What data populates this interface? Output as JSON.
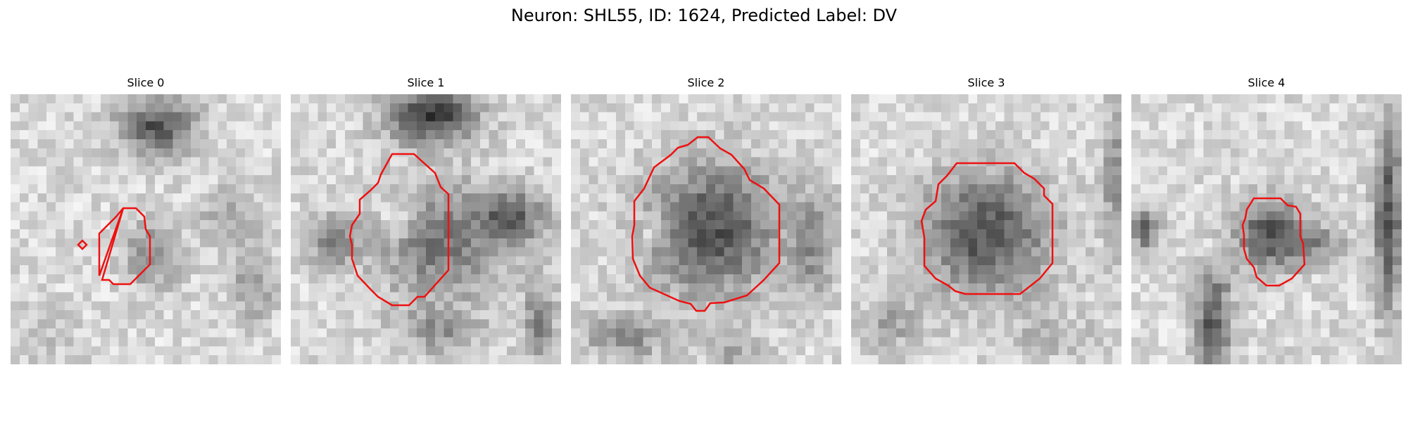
{
  "figure": {
    "title": "Neuron: SHL55, ID: 1624, Predicted Label: DV"
  },
  "colors": {
    "contour": "#ee1111",
    "colormap": "grayscale (dark = high signal)"
  },
  "slices": [
    {
      "title": "Slice 0"
    },
    {
      "title": "Slice 1"
    },
    {
      "title": "Slice 2"
    },
    {
      "title": "Slice 3"
    },
    {
      "title": "Slice 4"
    }
  ]
}
